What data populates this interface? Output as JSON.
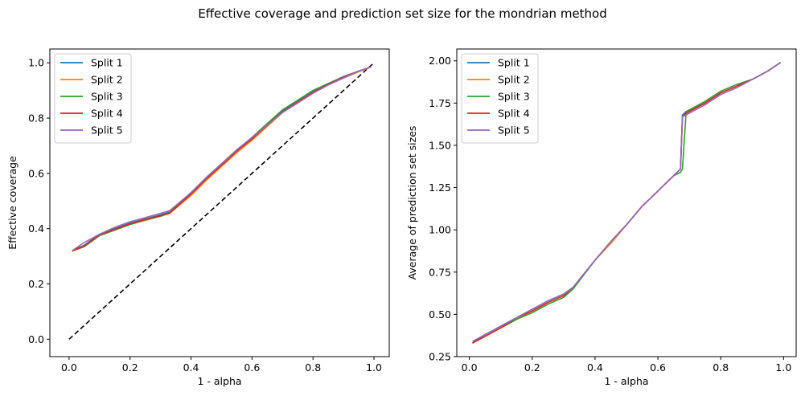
{
  "suptitle": "Effective coverage and prediction set size for the mondrian method",
  "colors": {
    "series": [
      "#1f77b4",
      "#ff7f0e",
      "#2ca02c",
      "#d62728",
      "#9467bd"
    ],
    "diagonal": "#000000"
  },
  "chart_data": [
    {
      "type": "line",
      "title": "",
      "xlabel": "1 - alpha",
      "ylabel": "Effective coverage",
      "xlim": [
        -0.063,
        1.05
      ],
      "ylim": [
        -0.063,
        1.05
      ],
      "xticks": [
        "0.0",
        "0.2",
        "0.4",
        "0.6",
        "0.8",
        "1.0"
      ],
      "yticks": [
        "0.0",
        "0.2",
        "0.4",
        "0.6",
        "0.8",
        "1.0"
      ],
      "legend": "top-left",
      "reference_line": {
        "style": "dashed",
        "x": [
          0,
          1
        ],
        "y": [
          0,
          1
        ]
      },
      "x": [
        0.01,
        0.05,
        0.1,
        0.15,
        0.2,
        0.25,
        0.3,
        0.33,
        0.4,
        0.45,
        0.5,
        0.55,
        0.6,
        0.65,
        0.7,
        0.75,
        0.8,
        0.85,
        0.9,
        0.95,
        0.99
      ],
      "series": [
        {
          "name": "Split 1",
          "values": [
            0.32,
            0.34,
            0.38,
            0.4,
            0.42,
            0.435,
            0.45,
            0.46,
            0.53,
            0.58,
            0.63,
            0.68,
            0.73,
            0.78,
            0.825,
            0.86,
            0.895,
            0.925,
            0.95,
            0.97,
            0.985
          ]
        },
        {
          "name": "Split 2",
          "values": [
            0.318,
            0.335,
            0.375,
            0.395,
            0.415,
            0.43,
            0.445,
            0.455,
            0.52,
            0.575,
            0.625,
            0.675,
            0.72,
            0.77,
            0.82,
            0.855,
            0.89,
            0.92,
            0.945,
            0.968,
            0.985
          ]
        },
        {
          "name": "Split 3",
          "values": [
            0.32,
            0.335,
            0.375,
            0.395,
            0.415,
            0.432,
            0.445,
            0.458,
            0.53,
            0.585,
            0.635,
            0.685,
            0.73,
            0.78,
            0.83,
            0.865,
            0.9,
            0.925,
            0.948,
            0.97,
            0.985
          ]
        },
        {
          "name": "Split 4",
          "values": [
            0.32,
            0.337,
            0.378,
            0.398,
            0.418,
            0.434,
            0.447,
            0.457,
            0.525,
            0.58,
            0.63,
            0.68,
            0.725,
            0.775,
            0.822,
            0.858,
            0.893,
            0.922,
            0.948,
            0.97,
            0.985
          ]
        },
        {
          "name": "Split 5",
          "values": [
            0.32,
            0.35,
            0.38,
            0.405,
            0.425,
            0.44,
            0.455,
            0.465,
            0.53,
            0.585,
            0.635,
            0.685,
            0.73,
            0.775,
            0.82,
            0.855,
            0.89,
            0.92,
            0.945,
            0.97,
            0.985
          ]
        }
      ]
    },
    {
      "type": "line",
      "title": "",
      "xlabel": "1 - alpha",
      "ylabel": "Average of prediction set sizes",
      "xlim": [
        -0.04,
        1.04
      ],
      "ylim": [
        0.25,
        2.07
      ],
      "xticks": [
        "0.0",
        "0.2",
        "0.4",
        "0.6",
        "0.8",
        "1.0"
      ],
      "yticks": [
        "0.25",
        "0.50",
        "0.75",
        "1.00",
        "1.25",
        "1.50",
        "1.75",
        "2.00"
      ],
      "legend": "top-left",
      "x": [
        0.01,
        0.05,
        0.1,
        0.15,
        0.2,
        0.25,
        0.3,
        0.33,
        0.4,
        0.45,
        0.5,
        0.55,
        0.6,
        0.65,
        0.672,
        0.678,
        0.69,
        0.75,
        0.8,
        0.85,
        0.9,
        0.95,
        0.99
      ],
      "series": [
        {
          "name": "Split 1",
          "values": [
            0.33,
            0.38,
            0.43,
            0.48,
            0.53,
            0.58,
            0.62,
            0.66,
            0.82,
            0.93,
            1.03,
            1.14,
            1.23,
            1.32,
            1.36,
            1.68,
            1.7,
            1.75,
            1.81,
            1.85,
            1.89,
            1.94,
            1.99
          ]
        },
        {
          "name": "Split 2",
          "values": [
            0.33,
            0.37,
            0.42,
            0.47,
            0.52,
            0.57,
            0.61,
            0.66,
            0.82,
            0.92,
            1.03,
            1.14,
            1.23,
            1.32,
            1.36,
            1.67,
            1.69,
            1.75,
            1.81,
            1.85,
            1.89,
            1.94,
            1.99
          ]
        },
        {
          "name": "Split 3",
          "values": [
            0.33,
            0.37,
            0.42,
            0.47,
            0.51,
            0.56,
            0.6,
            0.65,
            0.82,
            0.93,
            1.03,
            1.14,
            1.23,
            1.32,
            1.34,
            1.36,
            1.7,
            1.76,
            1.82,
            1.86,
            1.89,
            1.94,
            1.99
          ]
        },
        {
          "name": "Split 4",
          "values": [
            0.33,
            0.37,
            0.42,
            0.48,
            0.52,
            0.57,
            0.61,
            0.66,
            0.82,
            0.93,
            1.03,
            1.14,
            1.23,
            1.32,
            1.36,
            1.67,
            1.69,
            1.75,
            1.81,
            1.85,
            1.89,
            1.94,
            1.99
          ]
        },
        {
          "name": "Split 5",
          "values": [
            0.34,
            0.38,
            0.43,
            0.48,
            0.53,
            0.58,
            0.62,
            0.66,
            0.82,
            0.93,
            1.03,
            1.14,
            1.23,
            1.32,
            1.36,
            1.67,
            1.68,
            1.74,
            1.8,
            1.84,
            1.89,
            1.94,
            1.99
          ]
        }
      ]
    }
  ]
}
